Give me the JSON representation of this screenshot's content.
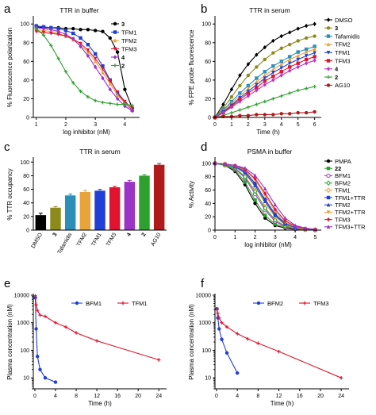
{
  "figure": {
    "panels": [
      "a",
      "b",
      "c",
      "d",
      "e",
      "f"
    ]
  },
  "colors": {
    "black": "#000000",
    "blue": "#1f3fd6",
    "orange": "#e8a33a",
    "red": "#e0142e",
    "purple": "#9b33c7",
    "green": "#2da12d",
    "navy": "#2342c8",
    "olive": "#8d8a1c",
    "teal": "#2b8fb8",
    "darkred": "#b01a1a",
    "magenta": "#b733c9",
    "violet": "#7b4fd0",
    "lightpurple": "#c27bdb"
  },
  "chart_data": [
    {
      "id": "a",
      "type": "line",
      "title": "TTR in buffer",
      "xlabel": "log inhibitor (nM)",
      "ylabel": "% Fluorescence polarization",
      "xlim": [
        0.9,
        4.5
      ],
      "ylim": [
        0,
        107
      ],
      "xticks": [
        1,
        2,
        3,
        4
      ],
      "yticks": [
        0,
        20,
        40,
        60,
        80,
        100
      ],
      "x": [
        1,
        1.25,
        1.5,
        1.75,
        2,
        2.25,
        2.5,
        2.75,
        3,
        3.25,
        3.5,
        3.75,
        4,
        4.25
      ],
      "legend_position": "top-right",
      "series": [
        {
          "name": "3",
          "color": "#000000",
          "marker": "circle",
          "values": [
            97,
            96,
            96,
            96,
            95,
            95,
            94,
            94,
            93,
            92,
            85,
            70,
            30,
            10
          ]
        },
        {
          "name": "TFM1",
          "color": "#1f3fd6",
          "marker": "square",
          "values": [
            98,
            97,
            96,
            95,
            93,
            90,
            85,
            78,
            68,
            55,
            40,
            26,
            15,
            8
          ]
        },
        {
          "name": "TFM2",
          "color": "#e8a33a",
          "marker": "triangle",
          "values": [
            94,
            93,
            92,
            90,
            87,
            83,
            77,
            70,
            60,
            48,
            36,
            24,
            15,
            9
          ]
        },
        {
          "name": "TFM3",
          "color": "#e0142e",
          "marker": "triangle-down",
          "values": [
            92,
            91,
            90,
            89,
            87,
            84,
            79,
            72,
            63,
            52,
            39,
            27,
            17,
            10
          ]
        },
        {
          "name": "4",
          "color": "#9b33c7",
          "marker": "diamond",
          "values": [
            96,
            95,
            94,
            92,
            89,
            84,
            76,
            66,
            54,
            42,
            30,
            20,
            12,
            7
          ]
        },
        {
          "name": "2",
          "color": "#2da12d",
          "marker": "plus",
          "values": [
            95,
            88,
            77,
            63,
            49,
            37,
            28,
            22,
            18,
            16,
            15,
            14,
            14,
            13
          ]
        }
      ]
    },
    {
      "id": "b",
      "type": "line",
      "title": "TTR in serum",
      "xlabel": "Time (h)",
      "ylabel": "% FPE probe fluorescence",
      "xlim": [
        0,
        6.4
      ],
      "ylim": [
        0,
        107
      ],
      "xticks": [
        0,
        1,
        2,
        3,
        4,
        5,
        6
      ],
      "yticks": [
        0,
        20,
        40,
        60,
        80,
        100
      ],
      "x": [
        0,
        0.5,
        1,
        1.5,
        2,
        2.5,
        3,
        3.5,
        4,
        4.5,
        5,
        5.5,
        6
      ],
      "legend_position": "right",
      "series": [
        {
          "name": "DMSO",
          "color": "#000000",
          "marker": "diamond",
          "values": [
            0,
            14,
            30,
            45,
            57,
            67,
            75,
            82,
            87,
            91,
            95,
            98,
            100
          ]
        },
        {
          "name": "3",
          "color": "#8d8a1c",
          "marker": "circle",
          "values": [
            0,
            10,
            22,
            34,
            45,
            54,
            62,
            69,
            74,
            78,
            82,
            85,
            87
          ]
        },
        {
          "name": "Tafamidis",
          "color": "#2b8fb8",
          "marker": "square",
          "values": [
            0,
            8,
            17,
            26,
            34,
            42,
            49,
            55,
            60,
            65,
            70,
            73,
            76
          ]
        },
        {
          "name": "TFM2",
          "color": "#e8a33a",
          "marker": "triangle",
          "values": [
            0,
            7,
            15,
            23,
            31,
            38,
            45,
            51,
            57,
            62,
            66,
            70,
            73
          ]
        },
        {
          "name": "TFM1",
          "color": "#1f3fd6",
          "marker": "triangle-down",
          "values": [
            0,
            6,
            13,
            21,
            28,
            35,
            42,
            48,
            53,
            58,
            62,
            66,
            69
          ]
        },
        {
          "name": "TFM3",
          "color": "#e0142e",
          "marker": "square",
          "values": [
            0,
            5,
            12,
            19,
            26,
            32,
            39,
            44,
            49,
            54,
            58,
            62,
            65
          ]
        },
        {
          "name": "4",
          "color": "#b733c9",
          "marker": "diamond",
          "values": [
            0,
            5,
            11,
            17,
            23,
            29,
            35,
            40,
            45,
            50,
            54,
            58,
            61
          ]
        },
        {
          "name": "2",
          "color": "#2da12d",
          "marker": "plus",
          "values": [
            0,
            2,
            5,
            8,
            11,
            14,
            17,
            20,
            23,
            26,
            29,
            31,
            33
          ]
        },
        {
          "name": "AG10",
          "color": "#b01a1a",
          "marker": "circle",
          "values": [
            0,
            1,
            1,
            2,
            2,
            3,
            3,
            3,
            4,
            4,
            5,
            5,
            6
          ]
        }
      ]
    },
    {
      "id": "c",
      "type": "bar",
      "title": "TTR in serum",
      "xlabel": "",
      "ylabel": "% TTR occupancy",
      "ylim": [
        0,
        105
      ],
      "yticks": [
        0,
        20,
        40,
        60,
        80,
        100
      ],
      "categories": [
        "DMSO",
        "3",
        "Tafamidis",
        "TFM2",
        "TFM1",
        "TFM3",
        "4",
        "2",
        "AG10"
      ],
      "values": [
        22,
        33,
        51,
        56,
        58,
        63,
        71,
        80,
        96
      ],
      "errors": [
        3,
        1.5,
        2,
        2.5,
        2,
        1.5,
        2,
        1.5,
        2
      ],
      "colors": [
        "#000000",
        "#8d8a1c",
        "#2b8fb8",
        "#e8a33a",
        "#1f3fd6",
        "#e0142e",
        "#9b33c7",
        "#2da12d",
        "#b01a1a"
      ]
    },
    {
      "id": "d",
      "type": "line",
      "title": "PSMA in buffer",
      "xlabel": "log inhibitor (nM)",
      "ylabel": "% Activity",
      "xlim": [
        0,
        5.3
      ],
      "ylim": [
        0,
        107
      ],
      "xticks": [
        0,
        1,
        2,
        3,
        4,
        5
      ],
      "yticks": [
        0,
        20,
        40,
        60,
        80,
        100
      ],
      "x": [
        0,
        0.5,
        1,
        1.5,
        2,
        2.5,
        3,
        3.5,
        4,
        4.5,
        5
      ],
      "legend_position": "right",
      "series": [
        {
          "name": "PMPA",
          "color": "#000000",
          "marker": "circle",
          "values": [
            100,
            97,
            88,
            68,
            40,
            18,
            7,
            3,
            1,
            0,
            0
          ]
        },
        {
          "name": "22",
          "color": "#2da12d",
          "marker": "square",
          "values": [
            100,
            97,
            90,
            72,
            45,
            22,
            9,
            4,
            2,
            1,
            0
          ]
        },
        {
          "name": "BFM1",
          "color": "#b733c9",
          "marker": "circle-open",
          "values": [
            100,
            98,
            92,
            78,
            54,
            30,
            13,
            5,
            2,
            1,
            0
          ]
        },
        {
          "name": "BFM2",
          "color": "#2da12d",
          "marker": "diamond-open",
          "values": [
            100,
            98,
            93,
            80,
            58,
            33,
            15,
            6,
            3,
            1,
            0
          ]
        },
        {
          "name": "TFM1",
          "color": "#e8a33a",
          "marker": "diamond-open",
          "values": [
            100,
            99,
            95,
            85,
            65,
            40,
            20,
            8,
            3,
            1,
            0
          ]
        },
        {
          "name": "TFM1+TTR",
          "color": "#1f3fd6",
          "marker": "square",
          "values": [
            100,
            99,
            96,
            88,
            70,
            46,
            24,
            10,
            4,
            2,
            1
          ]
        },
        {
          "name": "TFM2",
          "color": "#2342c8",
          "marker": "triangle",
          "values": [
            100,
            99,
            95,
            86,
            67,
            43,
            22,
            9,
            4,
            2,
            1
          ]
        },
        {
          "name": "TFM2+TTR",
          "color": "#e8a33a",
          "marker": "triangle-down",
          "values": [
            100,
            99,
            96,
            90,
            75,
            52,
            28,
            12,
            5,
            2,
            1
          ]
        },
        {
          "name": "TFM3",
          "color": "#e0142e",
          "marker": "diamond",
          "values": [
            100,
            99,
            97,
            91,
            77,
            55,
            31,
            14,
            6,
            2,
            1
          ]
        },
        {
          "name": "TFM3+TTR",
          "color": "#9b33c7",
          "marker": "triangle",
          "values": [
            100,
            99,
            97,
            93,
            82,
            62,
            38,
            18,
            7,
            3,
            1
          ]
        }
      ]
    },
    {
      "id": "e",
      "type": "line",
      "title": "",
      "xlabel": "Time (h)",
      "ylabel": "Plasma concentration (nM)",
      "yscale": "log",
      "xlim": [
        -0.3,
        25.5
      ],
      "ylim": [
        4,
        10000
      ],
      "xticks": [
        0,
        4,
        8,
        12,
        16,
        20,
        24
      ],
      "yticks": [
        10,
        100,
        1000,
        10000
      ],
      "legend_position": "top",
      "series": [
        {
          "name": "BFM1",
          "color": "#1f3fd6",
          "marker": "circle",
          "x": [
            0.083,
            0.25,
            0.5,
            1,
            2,
            4
          ],
          "values": [
            8000,
            600,
            60,
            20,
            10,
            7
          ]
        },
        {
          "name": "TFM1",
          "color": "#e0142e",
          "marker": "plus",
          "x": [
            0.083,
            0.25,
            0.5,
            1,
            2,
            4,
            6,
            8,
            12,
            24
          ],
          "values": [
            9500,
            4500,
            2800,
            1900,
            1700,
            1000,
            700,
            430,
            220,
            45
          ]
        }
      ]
    },
    {
      "id": "f",
      "type": "line",
      "title": "",
      "xlabel": "Time (h)",
      "ylabel": "Plasma concentration (nM)",
      "yscale": "log",
      "xlim": [
        -0.3,
        25.5
      ],
      "ylim": [
        4,
        10000
      ],
      "xticks": [
        0,
        4,
        8,
        12,
        16,
        20,
        24
      ],
      "yticks": [
        10,
        100,
        1000,
        10000
      ],
      "legend_position": "top",
      "series": [
        {
          "name": "BFM2",
          "color": "#1f3fd6",
          "marker": "circle",
          "x": [
            0.083,
            0.25,
            0.5,
            1,
            2,
            4
          ],
          "values": [
            3200,
            1500,
            600,
            250,
            80,
            15
          ]
        },
        {
          "name": "TFM3",
          "color": "#e0142e",
          "marker": "plus",
          "x": [
            0.083,
            0.25,
            0.5,
            1,
            2,
            4,
            6,
            8,
            12,
            24
          ],
          "values": [
            3000,
            2200,
            1500,
            1000,
            700,
            400,
            260,
            180,
            90,
            10
          ]
        }
      ]
    }
  ]
}
